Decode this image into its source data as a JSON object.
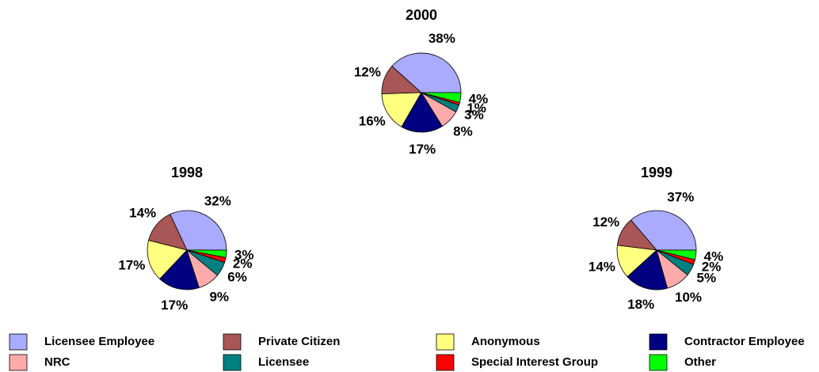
{
  "chart_data": [
    {
      "type": "pie",
      "title": "2000",
      "categories": [
        "Licensee Employee",
        "Private Citizen",
        "Anonymous",
        "Contractor Employee",
        "NRC",
        "Licensee",
        "Special Interest Group",
        "Other"
      ],
      "values": [
        38,
        12,
        16,
        17,
        8,
        3,
        1,
        4
      ],
      "value_labels": [
        "38%",
        "12%",
        "16%",
        "17%",
        "8%",
        "3%",
        "1%",
        "4%"
      ],
      "colors": [
        "#aaaaff",
        "#a85656",
        "#ffff80",
        "#000080",
        "#ffaaaa",
        "#008080",
        "#ff0000",
        "#00ff00"
      ]
    },
    {
      "type": "pie",
      "title": "1998",
      "categories": [
        "Licensee Employee",
        "Private Citizen",
        "Anonymous",
        "Contractor Employee",
        "NRC",
        "Licensee",
        "Special Interest Group",
        "Other"
      ],
      "values": [
        32,
        14,
        17,
        17,
        9,
        6,
        2,
        3
      ],
      "value_labels": [
        "32%",
        "14%",
        "17%",
        "17%",
        "9%",
        "6%",
        "2%",
        "3%"
      ],
      "colors": [
        "#aaaaff",
        "#a85656",
        "#ffff80",
        "#000080",
        "#ffaaaa",
        "#008080",
        "#ff0000",
        "#00ff00"
      ]
    },
    {
      "type": "pie",
      "title": "1999",
      "categories": [
        "Licensee Employee",
        "Private Citizen",
        "Anonymous",
        "Contractor Employee",
        "NRC",
        "Licensee",
        "Special Interest Group",
        "Other"
      ],
      "values": [
        37,
        12,
        14,
        18,
        10,
        5,
        2,
        4
      ],
      "value_labels": [
        "37%",
        "12%",
        "14%",
        "18%",
        "10%",
        "5%",
        "2%",
        "4%"
      ],
      "colors": [
        "#aaaaff",
        "#a85656",
        "#ffff80",
        "#000080",
        "#ffaaaa",
        "#008080",
        "#ff0000",
        "#00ff00"
      ]
    }
  ]
}
